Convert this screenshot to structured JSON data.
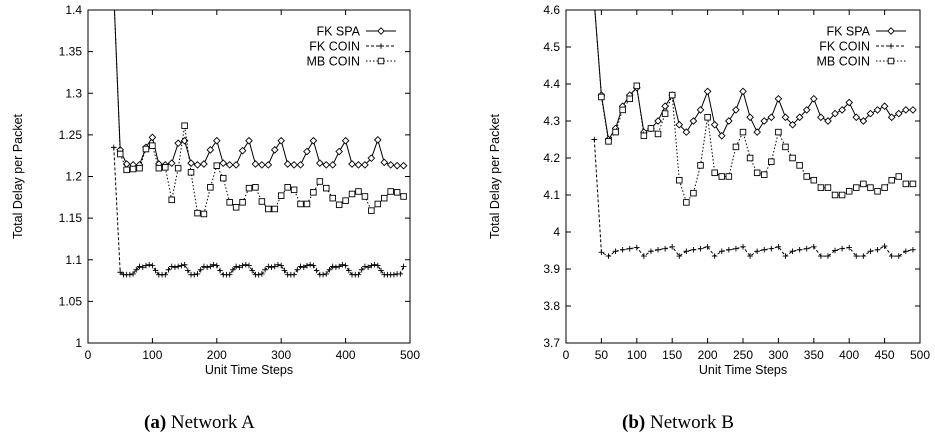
{
  "captions": [
    {
      "label": "(a)",
      "text": "Network A"
    },
    {
      "label": "(b)",
      "text": "Network B"
    }
  ],
  "chart_data": [
    {
      "type": "line",
      "xlabel": "Unit Time Steps",
      "ylabel": "Total Delay per Packet",
      "xlim": [
        0,
        500
      ],
      "ylim": [
        1,
        1.4
      ],
      "xticks": [
        0,
        100,
        200,
        300,
        400,
        500
      ],
      "yticks": [
        1,
        1.05,
        1.1,
        1.15,
        1.2,
        1.25,
        1.3,
        1.35,
        1.4
      ],
      "ytick_labels": [
        "1",
        "1.05",
        "1.1",
        "1.15",
        "1.2",
        "1.25",
        "1.3",
        "1.35",
        "1.4"
      ],
      "grid": false,
      "legend_position": "top-right",
      "series": [
        {
          "name": "FK SPA",
          "marker": "diamond",
          "dash": "solid",
          "x": [
            40,
            50,
            60,
            70,
            80,
            90,
            100,
            110,
            120,
            130,
            140,
            150,
            160,
            170,
            180,
            190,
            200,
            210,
            220,
            230,
            240,
            250,
            260,
            270,
            280,
            290,
            300,
            310,
            320,
            330,
            340,
            350,
            360,
            370,
            380,
            390,
            400,
            410,
            420,
            430,
            440,
            450,
            460,
            470,
            480,
            490
          ],
          "y": [
            1.42,
            1.232,
            1.215,
            1.214,
            1.214,
            1.235,
            1.247,
            1.215,
            1.214,
            1.216,
            1.24,
            1.243,
            1.216,
            1.214,
            1.215,
            1.232,
            1.243,
            1.216,
            1.214,
            1.214,
            1.231,
            1.243,
            1.215,
            1.214,
            1.214,
            1.232,
            1.243,
            1.215,
            1.214,
            1.214,
            1.23,
            1.243,
            1.216,
            1.214,
            1.214,
            1.23,
            1.243,
            1.215,
            1.214,
            1.214,
            1.222,
            1.244,
            1.217,
            1.214,
            1.213,
            1.213
          ]
        },
        {
          "name": "FK COIN",
          "marker": "plus",
          "dash": "dashed",
          "x": [
            40,
            50,
            55,
            60,
            65,
            70,
            75,
            80,
            85,
            90,
            95,
            100,
            105,
            110,
            115,
            120,
            125,
            130,
            135,
            140,
            145,
            150,
            155,
            160,
            165,
            170,
            175,
            180,
            185,
            190,
            195,
            200,
            205,
            210,
            215,
            220,
            225,
            230,
            235,
            240,
            245,
            250,
            255,
            260,
            265,
            270,
            275,
            280,
            285,
            290,
            295,
            300,
            305,
            310,
            315,
            320,
            325,
            330,
            335,
            340,
            345,
            350,
            355,
            360,
            365,
            370,
            375,
            380,
            385,
            390,
            395,
            400,
            405,
            410,
            415,
            420,
            425,
            430,
            435,
            440,
            445,
            450,
            455,
            460,
            465,
            470,
            475,
            480,
            485,
            490
          ],
          "y": [
            1.235,
            1.085,
            1.082,
            1.082,
            1.082,
            1.083,
            1.088,
            1.092,
            1.091,
            1.093,
            1.094,
            1.093,
            1.087,
            1.082,
            1.082,
            1.082,
            1.088,
            1.092,
            1.091,
            1.092,
            1.093,
            1.094,
            1.087,
            1.082,
            1.082,
            1.083,
            1.088,
            1.092,
            1.091,
            1.092,
            1.094,
            1.093,
            1.087,
            1.082,
            1.082,
            1.082,
            1.088,
            1.092,
            1.091,
            1.093,
            1.094,
            1.093,
            1.087,
            1.082,
            1.082,
            1.083,
            1.088,
            1.092,
            1.091,
            1.092,
            1.094,
            1.093,
            1.087,
            1.082,
            1.082,
            1.082,
            1.088,
            1.092,
            1.091,
            1.093,
            1.094,
            1.093,
            1.087,
            1.082,
            1.082,
            1.083,
            1.088,
            1.092,
            1.091,
            1.092,
            1.094,
            1.093,
            1.087,
            1.082,
            1.082,
            1.082,
            1.088,
            1.092,
            1.091,
            1.093,
            1.094,
            1.093,
            1.087,
            1.082,
            1.082,
            1.082,
            1.082,
            1.083,
            1.083,
            1.092
          ]
        },
        {
          "name": "MB COIN",
          "marker": "square",
          "dash": "dotted",
          "x": [
            40,
            50,
            60,
            70,
            80,
            90,
            100,
            110,
            120,
            130,
            140,
            150,
            160,
            170,
            180,
            190,
            200,
            210,
            220,
            230,
            240,
            250,
            260,
            270,
            280,
            290,
            300,
            310,
            320,
            330,
            340,
            350,
            360,
            370,
            380,
            390,
            400,
            410,
            420,
            430,
            440,
            450,
            460,
            470,
            480,
            490
          ],
          "y": [
            1.42,
            1.227,
            1.208,
            1.209,
            1.21,
            1.233,
            1.237,
            1.21,
            1.211,
            1.172,
            1.21,
            1.261,
            1.205,
            1.156,
            1.155,
            1.187,
            1.213,
            1.198,
            1.169,
            1.163,
            1.169,
            1.186,
            1.187,
            1.17,
            1.161,
            1.161,
            1.177,
            1.187,
            1.184,
            1.167,
            1.167,
            1.181,
            1.194,
            1.186,
            1.174,
            1.166,
            1.171,
            1.179,
            1.182,
            1.176,
            1.159,
            1.167,
            1.174,
            1.182,
            1.181,
            1.176
          ]
        }
      ]
    },
    {
      "type": "line",
      "xlabel": "Unit Time Steps",
      "ylabel": "Total Delay per Packet",
      "xlim": [
        0,
        500
      ],
      "ylim": [
        3.7,
        4.6
      ],
      "xticks": [
        0,
        50,
        100,
        150,
        200,
        250,
        300,
        350,
        400,
        450,
        500
      ],
      "yticks": [
        3.7,
        3.8,
        3.9,
        4.0,
        4.1,
        4.2,
        4.3,
        4.4,
        4.5,
        4.6
      ],
      "ytick_labels": [
        "3.7",
        "3.8",
        "3.9",
        "4",
        "4.1",
        "4.2",
        "4.3",
        "4.4",
        "4.5",
        "4.6"
      ],
      "grid": false,
      "legend_position": "top-right",
      "series": [
        {
          "name": "FK SPA",
          "marker": "diamond",
          "dash": "solid",
          "x": [
            40,
            50,
            60,
            70,
            80,
            90,
            100,
            110,
            120,
            130,
            140,
            150,
            160,
            170,
            180,
            190,
            200,
            210,
            220,
            230,
            240,
            250,
            260,
            270,
            280,
            290,
            300,
            310,
            320,
            330,
            340,
            350,
            360,
            370,
            380,
            390,
            400,
            410,
            420,
            430,
            440,
            450,
            460,
            470,
            480,
            490
          ],
          "y": [
            4.62,
            4.37,
            4.25,
            4.28,
            4.34,
            4.37,
            4.39,
            4.27,
            4.28,
            4.3,
            4.34,
            4.37,
            4.29,
            4.27,
            4.3,
            4.33,
            4.38,
            4.29,
            4.26,
            4.3,
            4.33,
            4.38,
            4.31,
            4.27,
            4.3,
            4.31,
            4.36,
            4.31,
            4.29,
            4.31,
            4.33,
            4.36,
            4.31,
            4.3,
            4.32,
            4.33,
            4.35,
            4.31,
            4.3,
            4.32,
            4.33,
            4.34,
            4.31,
            4.32,
            4.33,
            4.33
          ]
        },
        {
          "name": "FK COIN",
          "marker": "plus",
          "dash": "dashed",
          "x": [
            40,
            50,
            60,
            70,
            80,
            90,
            100,
            110,
            120,
            130,
            140,
            150,
            160,
            170,
            180,
            190,
            200,
            210,
            220,
            230,
            240,
            250,
            260,
            270,
            280,
            290,
            300,
            310,
            320,
            330,
            340,
            350,
            360,
            370,
            380,
            390,
            400,
            410,
            420,
            430,
            440,
            450,
            460,
            470,
            480,
            490
          ],
          "y": [
            4.25,
            3.945,
            3.935,
            3.948,
            3.952,
            3.955,
            3.958,
            3.935,
            3.948,
            3.952,
            3.955,
            3.96,
            3.935,
            3.948,
            3.952,
            3.955,
            3.96,
            3.935,
            3.948,
            3.952,
            3.955,
            3.96,
            3.935,
            3.948,
            3.952,
            3.955,
            3.96,
            3.935,
            3.948,
            3.952,
            3.955,
            3.96,
            3.935,
            3.935,
            3.95,
            3.955,
            3.958,
            3.935,
            3.935,
            3.948,
            3.952,
            3.962,
            3.935,
            3.935,
            3.948,
            3.952
          ]
        },
        {
          "name": "MB COIN",
          "marker": "square",
          "dash": "dotted",
          "x": [
            40,
            50,
            60,
            70,
            80,
            90,
            100,
            110,
            120,
            130,
            140,
            150,
            160,
            170,
            180,
            190,
            200,
            210,
            220,
            230,
            240,
            250,
            260,
            270,
            280,
            290,
            300,
            310,
            320,
            330,
            340,
            350,
            360,
            370,
            380,
            390,
            400,
            410,
            420,
            430,
            440,
            450,
            460,
            470,
            480,
            490
          ],
          "y": [
            4.62,
            4.365,
            4.245,
            4.27,
            4.33,
            4.36,
            4.395,
            4.26,
            4.28,
            4.265,
            4.32,
            4.37,
            4.14,
            4.08,
            4.105,
            4.18,
            4.31,
            4.16,
            4.15,
            4.15,
            4.23,
            4.27,
            4.2,
            4.16,
            4.155,
            4.19,
            4.27,
            4.23,
            4.2,
            4.18,
            4.15,
            4.14,
            4.12,
            4.12,
            4.1,
            4.1,
            4.11,
            4.12,
            4.13,
            4.12,
            4.11,
            4.12,
            4.14,
            4.15,
            4.13,
            4.13
          ]
        }
      ]
    }
  ]
}
